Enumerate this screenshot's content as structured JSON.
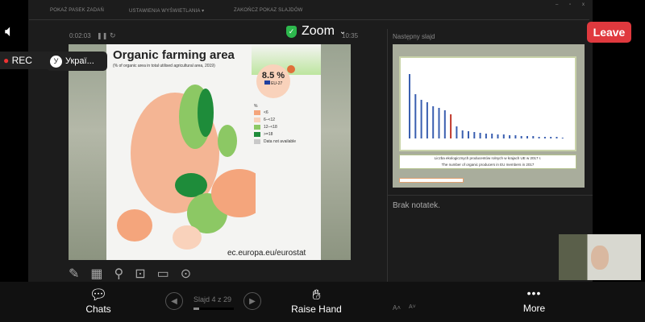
{
  "toolbar": {
    "show_taskbar": "POKAŻ PASEK ZADAŃ",
    "display_settings": "USTAWIENIA WYŚWIETLANIA ▾",
    "end_show": "ZAKOŃCZ POKAZ SLAJDÓW"
  },
  "window_controls": {
    "minimize": "–",
    "restore": "▫",
    "close": "x"
  },
  "header": {
    "app": "Zoom",
    "leave": "Leave",
    "rec": "REC",
    "participant_initial": "У",
    "participant_name": "Украї..."
  },
  "presenter": {
    "elapsed": "0:02:03",
    "clock": "10:35",
    "next_slide_label": "Następny slajd",
    "notes": "Brak notatek.",
    "slide_counter": "Slajd 4 z 29",
    "slide_progress": 0.138
  },
  "slide": {
    "title": "Organic farming area",
    "subtitle": "(% of organic area in total utilised agricultural area, 2019)",
    "badge_value": "8.5 %",
    "badge_label": "EU-27",
    "legend_unit": "%",
    "legend": [
      {
        "label": "<6",
        "color": "#f4a57c"
      },
      {
        "label": "6–<12",
        "color": "#f9d2bb"
      },
      {
        "label": "12–<18",
        "color": "#8cc864"
      },
      {
        "label": ">=18",
        "color": "#1e8c3a"
      },
      {
        "label": "Data not available",
        "color": "#c8c8c8"
      }
    ],
    "footer": "ec.europa.eu/eurostat"
  },
  "next_slide": {
    "caption_pl": "Liczba ekologicznych producentów rolnych w krajach UE w 2017 r.",
    "caption_en": "The number of organic producers in EU members in 2017"
  },
  "bottom": {
    "chats": "Chats",
    "raise_hand": "Raise Hand",
    "more": "More"
  }
}
